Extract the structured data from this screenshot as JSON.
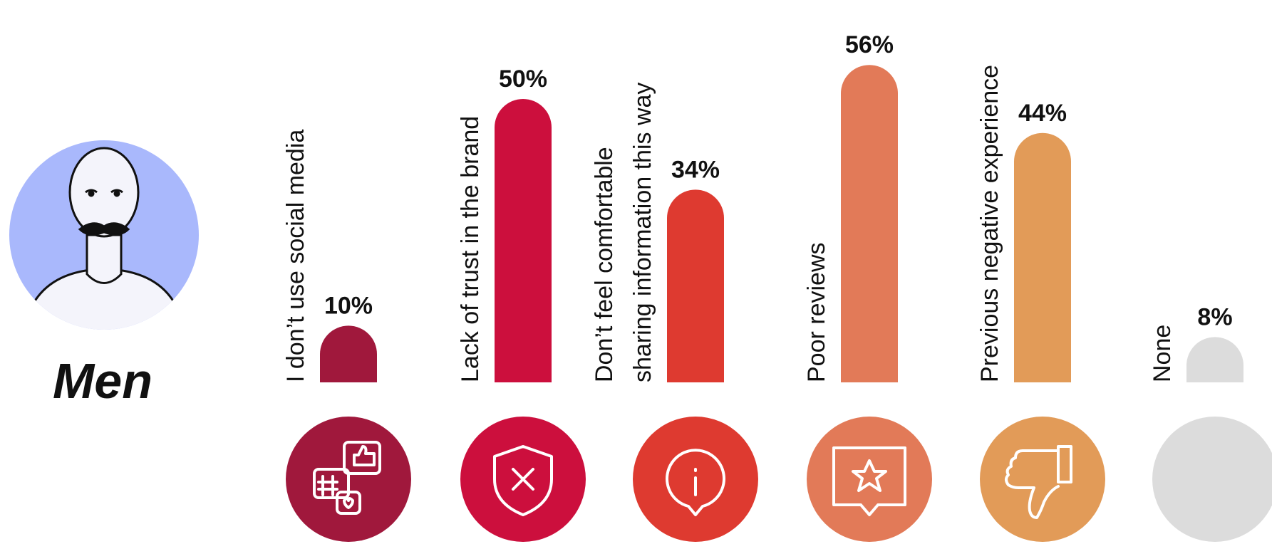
{
  "group": "Men",
  "chart_data": {
    "type": "bar",
    "categories": [
      [
        "I don’t use social media"
      ],
      [
        "Lack of trust in the brand"
      ],
      [
        "Don’t feel comfortable",
        "sharing information this way"
      ],
      [
        "Poor reviews"
      ],
      [
        "Previous negative experience"
      ],
      [
        "None"
      ]
    ],
    "values": [
      10,
      50,
      34,
      56,
      44,
      8
    ],
    "value_labels": [
      "10%",
      "50%",
      "34%",
      "56%",
      "44%",
      "8%"
    ],
    "colors": [
      "#a0183c",
      "#cc0f3d",
      "#de3a30",
      "#e27a58",
      "#e29b58",
      "#dcdcdc"
    ]
  }
}
